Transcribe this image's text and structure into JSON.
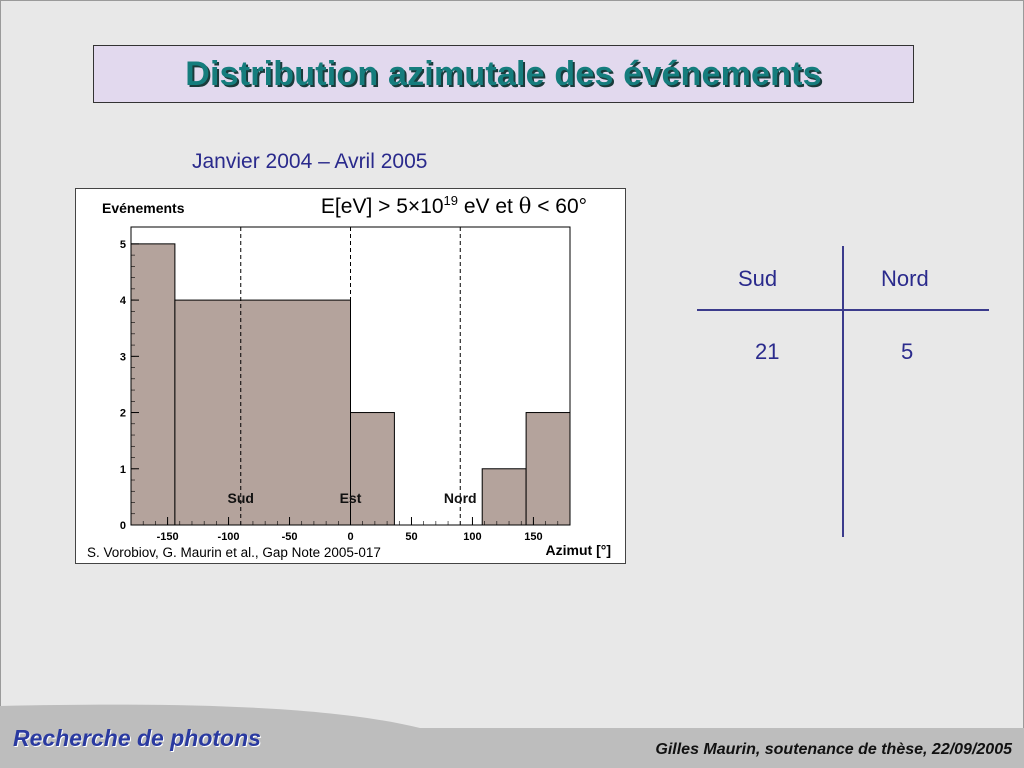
{
  "title": "Distribution azimutale des événements",
  "subtitle": "Janvier 2004 – Avril 2005",
  "condition": {
    "prefix": "E[eV] > 5×10",
    "exponent": "19",
    "middle": " eV et ",
    "theta": "θ",
    "suffix": " < 60°"
  },
  "reference": "S. Vorobiov, G. Maurin et al., Gap Note 2005-017",
  "table": {
    "headers": [
      "Sud",
      "Nord"
    ],
    "values": [
      "21",
      "5"
    ]
  },
  "footer": {
    "left": "Recherche de photons",
    "right": "Gilles Maurin, soutenance de thèse, 22/09/2005"
  },
  "colors": {
    "bar_fill": "#b4a39c",
    "title_text": "#157d7d",
    "title_bg": "#e2d9ee",
    "table_text": "#2a2a8c"
  },
  "chart_data": {
    "type": "bar",
    "ylabel": "Evénements",
    "xlabel": "Azimut [°]",
    "xlim": [
      -180,
      180
    ],
    "ylim": [
      0,
      5.3
    ],
    "xticks": [
      -150,
      -100,
      -50,
      0,
      50,
      100,
      150
    ],
    "yticks": [
      0,
      1,
      2,
      3,
      4,
      5
    ],
    "bins": [
      {
        "x0": -180,
        "x1": -144,
        "value": 5
      },
      {
        "x0": -144,
        "x1": 0,
        "value": 4
      },
      {
        "x0": 0,
        "x1": 36,
        "value": 2
      },
      {
        "x0": 36,
        "x1": 108,
        "value": 0
      },
      {
        "x0": 108,
        "x1": 144,
        "value": 1
      },
      {
        "x0": 144,
        "x1": 180,
        "value": 2
      }
    ],
    "reference_lines": [
      {
        "x": -90,
        "label": "Sud"
      },
      {
        "x": 0,
        "label": "Est"
      },
      {
        "x": 90,
        "label": "Nord"
      }
    ]
  }
}
